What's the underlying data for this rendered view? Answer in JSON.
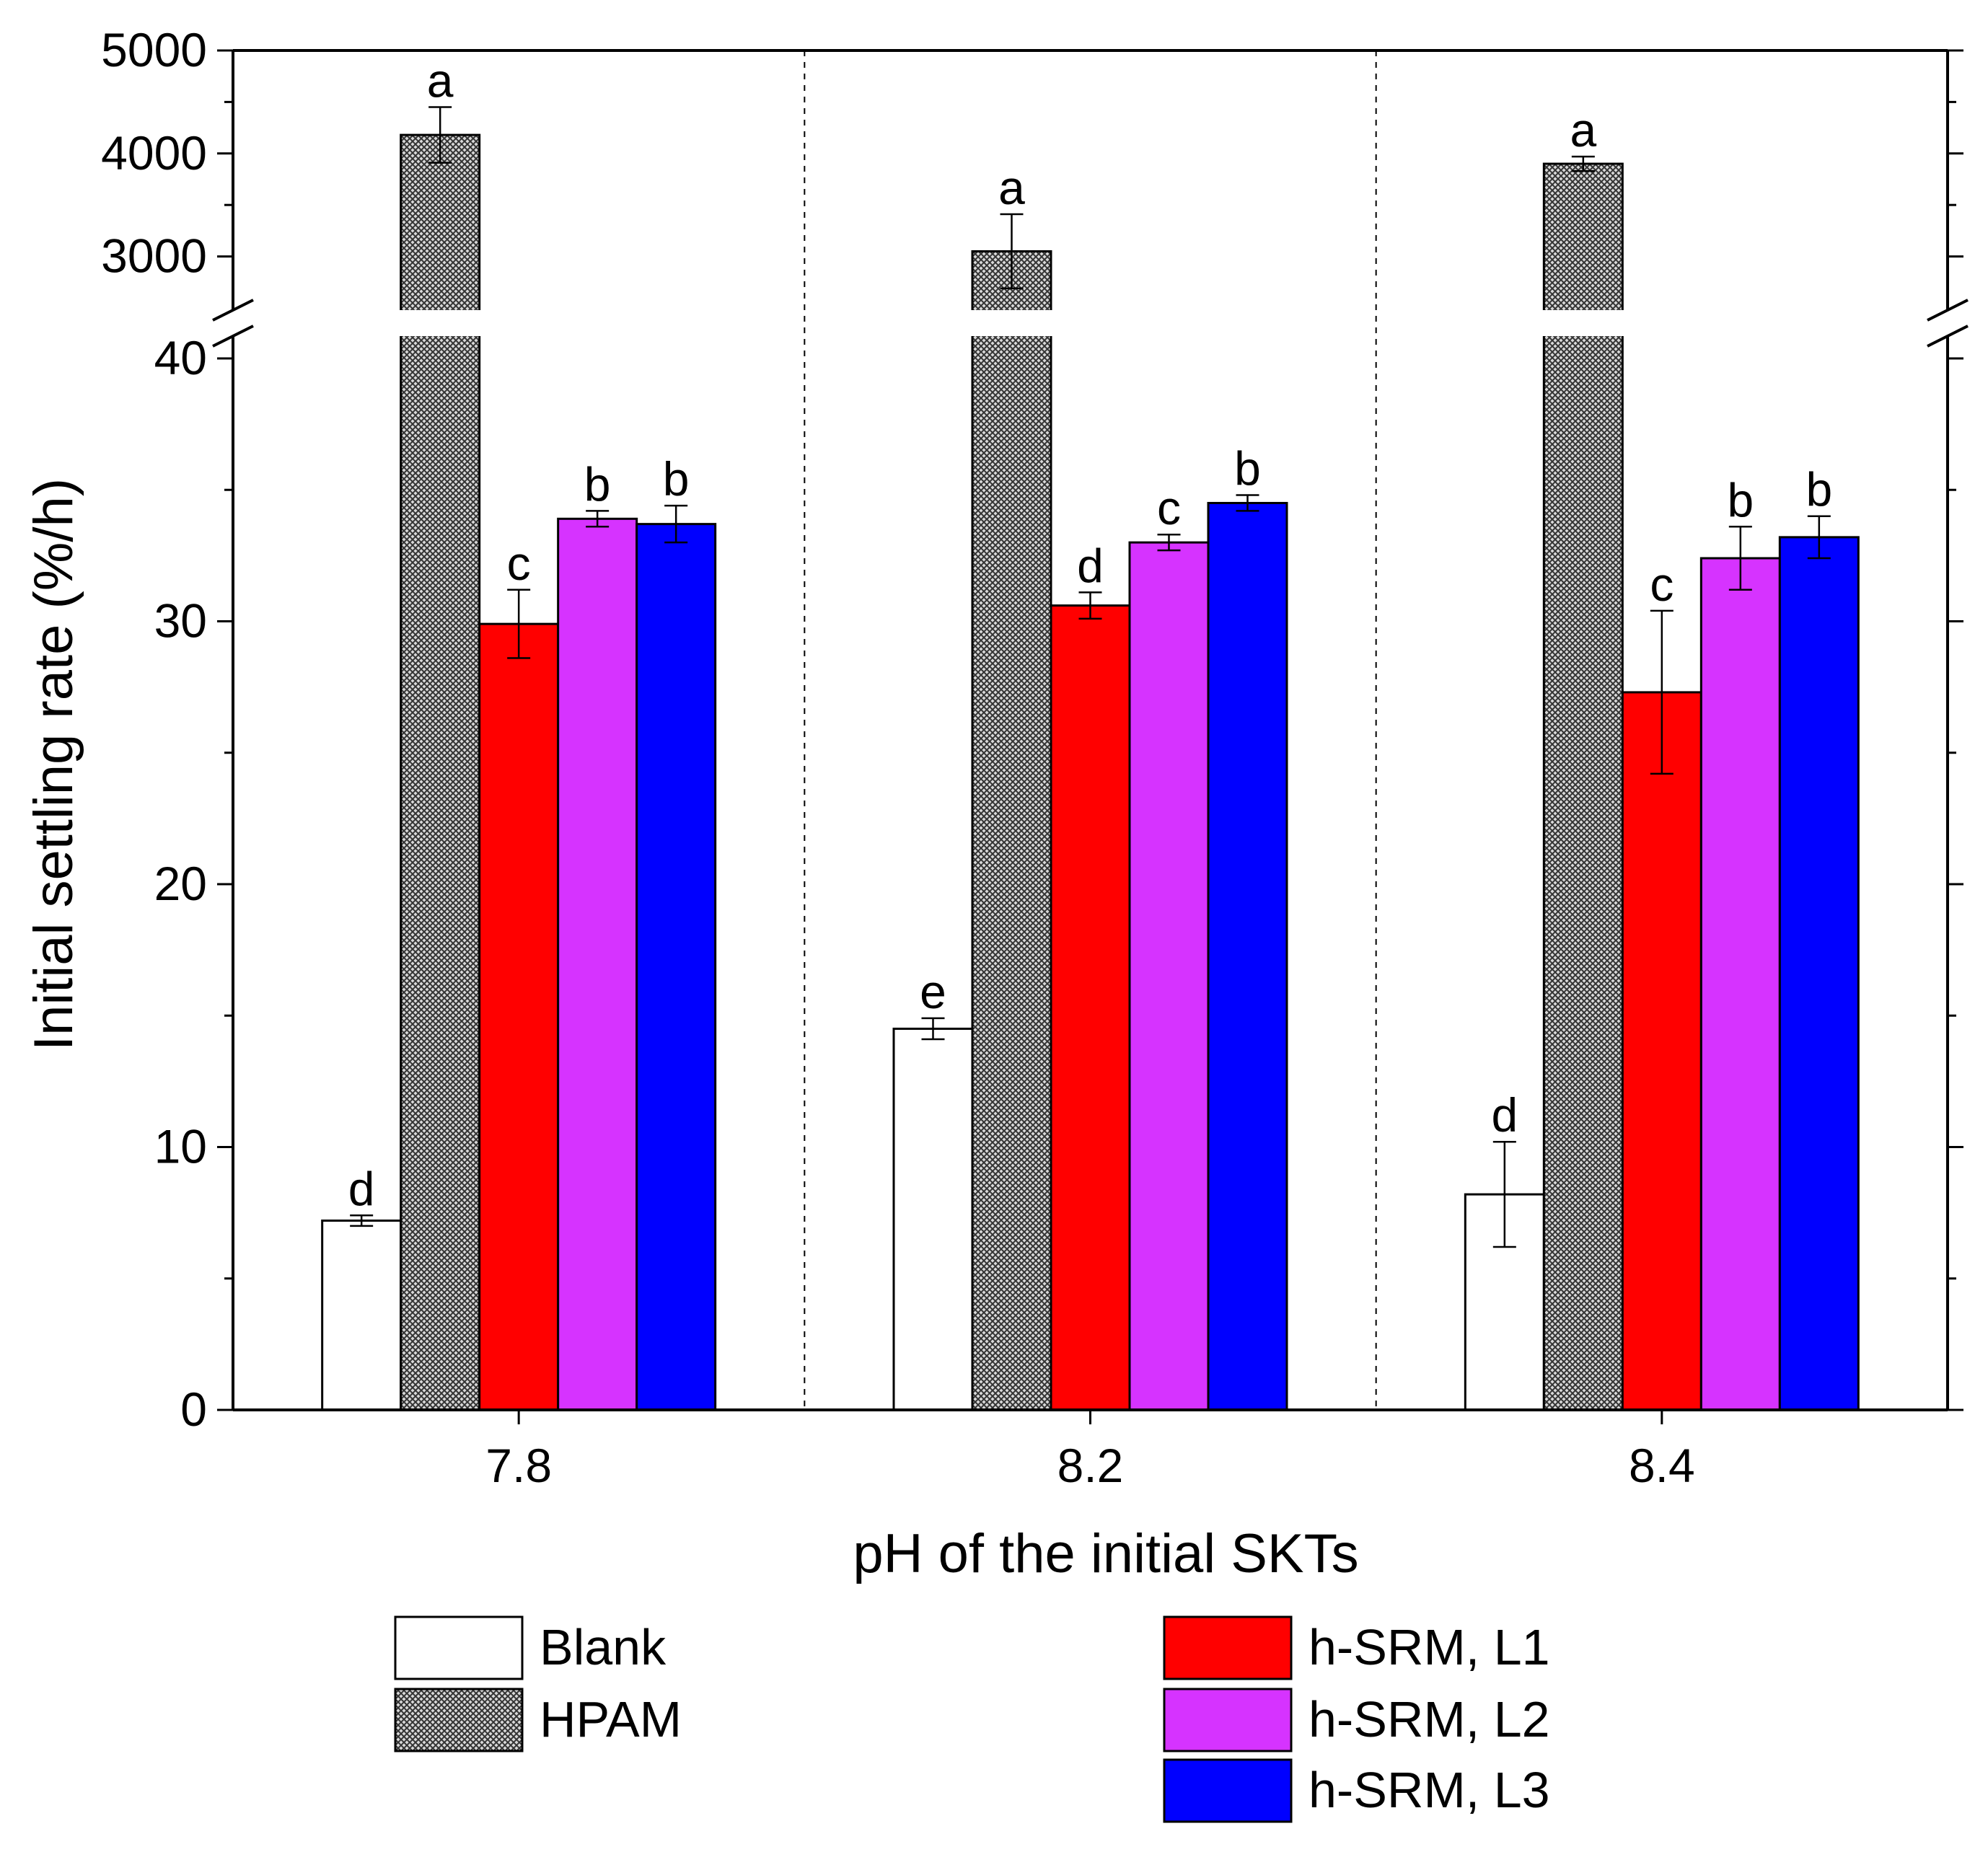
{
  "chart_data": {
    "type": "bar",
    "title": "",
    "xlabel": "pH of the initial SKTs",
    "ylabel": "Initial settling rate (%/h)",
    "categories": [
      "7.8",
      "8.2",
      "8.4"
    ],
    "axis_break": {
      "lower_ylim": [
        0,
        40
      ],
      "upper_ylim": [
        2500,
        5000
      ],
      "lower_ticks": [
        "0",
        "10",
        "20",
        "30",
        "40"
      ],
      "lower_tick_values": [
        0,
        10,
        20,
        30,
        40
      ],
      "upper_ticks": [
        "3000",
        "4000",
        "5000"
      ],
      "upper_tick_values": [
        3000,
        4000,
        5000
      ]
    },
    "series": [
      {
        "name": "Blank",
        "color": "#ffffff",
        "pattern": "none",
        "values": [
          7.2,
          14.5,
          8.2
        ],
        "errors": [
          0.2,
          0.4,
          2.0
        ],
        "letters": [
          "d",
          "e",
          "d"
        ]
      },
      {
        "name": "HPAM",
        "color": "#9a9a9a",
        "pattern": "crosshatch",
        "values": [
          4180,
          3050,
          3900
        ],
        "errors": [
          270,
          360,
          70
        ],
        "letters": [
          "a",
          "a",
          "a"
        ]
      },
      {
        "name": "h-SRM, L1",
        "color": "#ff0000",
        "pattern": "none",
        "values": [
          29.9,
          30.6,
          27.3
        ],
        "errors": [
          1.3,
          0.5,
          3.1
        ],
        "letters": [
          "c",
          "d",
          "c"
        ]
      },
      {
        "name": "h-SRM, L2",
        "color": "#d633ff",
        "pattern": "none",
        "values": [
          33.9,
          33.0,
          32.4
        ],
        "errors": [
          0.3,
          0.3,
          1.2
        ],
        "letters": [
          "b",
          "c",
          "b"
        ]
      },
      {
        "name": "h-SRM, L3",
        "color": "#0000ff",
        "pattern": "none",
        "values": [
          33.7,
          34.5,
          33.2
        ],
        "errors": [
          0.7,
          0.3,
          0.8
        ],
        "letters": [
          "b",
          "b",
          "b"
        ]
      }
    ],
    "legend": {
      "placement": "bottom",
      "entries": [
        "Blank",
        "HPAM",
        "h-SRM, L1",
        "h-SRM, L2",
        "h-SRM, L3"
      ]
    },
    "grid": false,
    "group_separators": "dashed vertical lines between groups"
  }
}
